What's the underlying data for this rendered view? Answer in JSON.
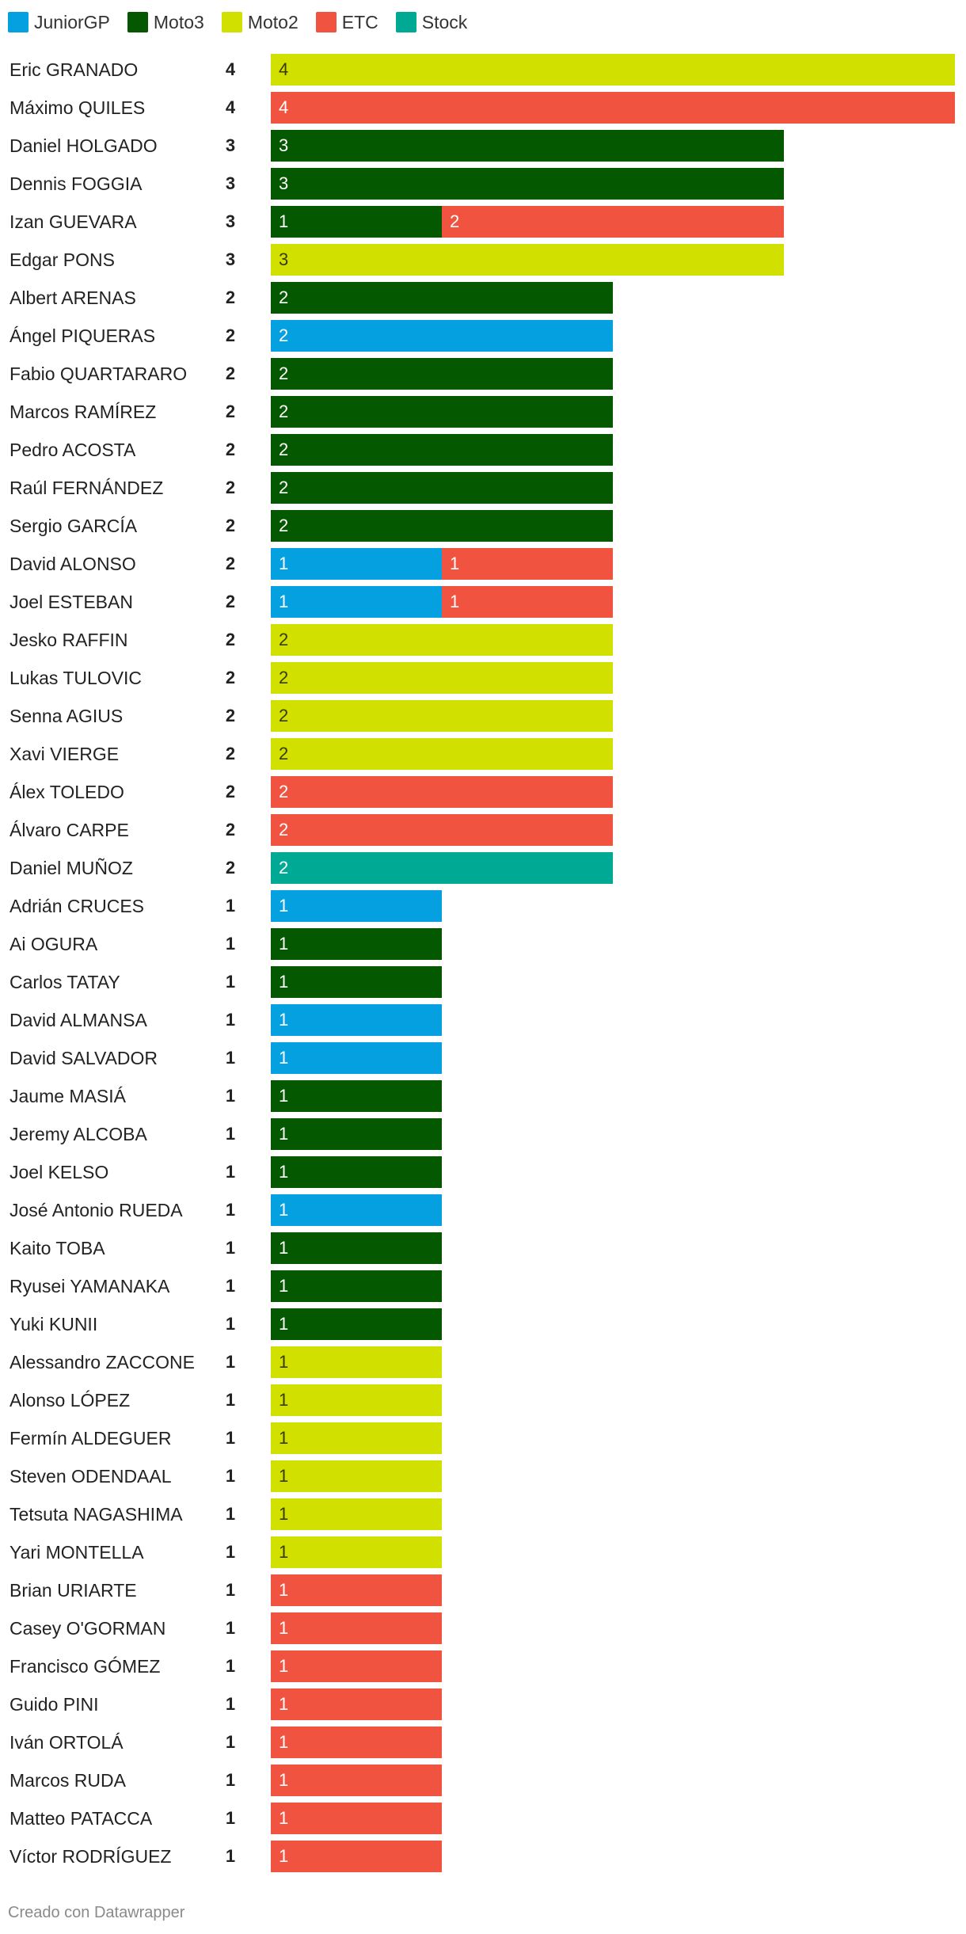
{
  "colors": {
    "JuniorGP": "#05a0df",
    "Moto3": "#035800",
    "Moto2": "#d2e000",
    "ETC": "#f05340",
    "Stock": "#00a994"
  },
  "chart_data": {
    "type": "bar",
    "orientation": "horizontal",
    "stacked": true,
    "xlim": [
      0,
      4
    ],
    "legend": [
      "JuniorGP",
      "Moto3",
      "Moto2",
      "ETC",
      "Stock"
    ],
    "legend_position": "top-left",
    "grid": false,
    "rows": [
      {
        "name": "Eric GRANADO",
        "total": "4",
        "segments": [
          {
            "series": "Moto2",
            "value": 4
          }
        ]
      },
      {
        "name": "Máximo QUILES",
        "total": "4",
        "segments": [
          {
            "series": "ETC",
            "value": 4
          }
        ]
      },
      {
        "name": "Daniel HOLGADO",
        "total": "3",
        "segments": [
          {
            "series": "Moto3",
            "value": 3
          }
        ]
      },
      {
        "name": "Dennis FOGGIA",
        "total": "3",
        "segments": [
          {
            "series": "Moto3",
            "value": 3
          }
        ]
      },
      {
        "name": "Izan GUEVARA",
        "total": "3",
        "segments": [
          {
            "series": "Moto3",
            "value": 1
          },
          {
            "series": "ETC",
            "value": 2
          }
        ]
      },
      {
        "name": "Edgar PONS",
        "total": "3",
        "segments": [
          {
            "series": "Moto2",
            "value": 3
          }
        ]
      },
      {
        "name": "Albert ARENAS",
        "total": "2",
        "segments": [
          {
            "series": "Moto3",
            "value": 2
          }
        ]
      },
      {
        "name": "Ángel PIQUERAS",
        "total": "2",
        "segments": [
          {
            "series": "JuniorGP",
            "value": 2
          }
        ]
      },
      {
        "name": "Fabio QUARTARARO",
        "total": "2",
        "segments": [
          {
            "series": "Moto3",
            "value": 2
          }
        ]
      },
      {
        "name": "Marcos RAMÍREZ",
        "total": "2",
        "segments": [
          {
            "series": "Moto3",
            "value": 2
          }
        ]
      },
      {
        "name": "Pedro ACOSTA",
        "total": "2",
        "segments": [
          {
            "series": "Moto3",
            "value": 2
          }
        ]
      },
      {
        "name": "Raúl FERNÁNDEZ",
        "total": "2",
        "segments": [
          {
            "series": "Moto3",
            "value": 2
          }
        ]
      },
      {
        "name": "Sergio GARCÍA",
        "total": "2",
        "segments": [
          {
            "series": "Moto3",
            "value": 2
          }
        ]
      },
      {
        "name": "David ALONSO",
        "total": "2",
        "segments": [
          {
            "series": "JuniorGP",
            "value": 1
          },
          {
            "series": "ETC",
            "value": 1
          }
        ]
      },
      {
        "name": "Joel ESTEBAN",
        "total": "2",
        "segments": [
          {
            "series": "JuniorGP",
            "value": 1
          },
          {
            "series": "ETC",
            "value": 1
          }
        ]
      },
      {
        "name": "Jesko RAFFIN",
        "total": "2",
        "segments": [
          {
            "series": "Moto2",
            "value": 2
          }
        ]
      },
      {
        "name": "Lukas TULOVIC",
        "total": "2",
        "segments": [
          {
            "series": "Moto2",
            "value": 2
          }
        ]
      },
      {
        "name": "Senna AGIUS",
        "total": "2",
        "segments": [
          {
            "series": "Moto2",
            "value": 2
          }
        ]
      },
      {
        "name": "Xavi VIERGE",
        "total": "2",
        "segments": [
          {
            "series": "Moto2",
            "value": 2
          }
        ]
      },
      {
        "name": "Álex TOLEDO",
        "total": "2",
        "segments": [
          {
            "series": "ETC",
            "value": 2
          }
        ]
      },
      {
        "name": "Álvaro CARPE",
        "total": "2",
        "segments": [
          {
            "series": "ETC",
            "value": 2
          }
        ]
      },
      {
        "name": "Daniel MUÑOZ",
        "total": "2",
        "segments": [
          {
            "series": "Stock",
            "value": 2
          }
        ]
      },
      {
        "name": "Adrián CRUCES",
        "total": "1",
        "segments": [
          {
            "series": "JuniorGP",
            "value": 1
          }
        ]
      },
      {
        "name": "Ai OGURA",
        "total": "1",
        "segments": [
          {
            "series": "Moto3",
            "value": 1
          }
        ]
      },
      {
        "name": "Carlos TATAY",
        "total": "1",
        "segments": [
          {
            "series": "Moto3",
            "value": 1
          }
        ]
      },
      {
        "name": "David ALMANSA",
        "total": "1",
        "segments": [
          {
            "series": "JuniorGP",
            "value": 1
          }
        ]
      },
      {
        "name": "David SALVADOR",
        "total": "1",
        "segments": [
          {
            "series": "JuniorGP",
            "value": 1
          }
        ]
      },
      {
        "name": "Jaume MASIÁ",
        "total": "1",
        "segments": [
          {
            "series": "Moto3",
            "value": 1
          }
        ]
      },
      {
        "name": "Jeremy ALCOBA",
        "total": "1",
        "segments": [
          {
            "series": "Moto3",
            "value": 1
          }
        ]
      },
      {
        "name": "Joel KELSO",
        "total": "1",
        "segments": [
          {
            "series": "Moto3",
            "value": 1
          }
        ]
      },
      {
        "name": "José Antonio RUEDA",
        "total": "1",
        "segments": [
          {
            "series": "JuniorGP",
            "value": 1
          }
        ]
      },
      {
        "name": "Kaito TOBA",
        "total": "1",
        "segments": [
          {
            "series": "Moto3",
            "value": 1
          }
        ]
      },
      {
        "name": "Ryusei YAMANAKA",
        "total": "1",
        "segments": [
          {
            "series": "Moto3",
            "value": 1
          }
        ]
      },
      {
        "name": "Yuki KUNII",
        "total": "1",
        "segments": [
          {
            "series": "Moto3",
            "value": 1
          }
        ]
      },
      {
        "name": "Alessandro ZACCONE",
        "total": "1",
        "segments": [
          {
            "series": "Moto2",
            "value": 1
          }
        ]
      },
      {
        "name": "Alonso LÓPEZ",
        "total": "1",
        "segments": [
          {
            "series": "Moto2",
            "value": 1
          }
        ]
      },
      {
        "name": "Fermín ALDEGUER",
        "total": "1",
        "segments": [
          {
            "series": "Moto2",
            "value": 1
          }
        ]
      },
      {
        "name": "Steven ODENDAAL",
        "total": "1",
        "segments": [
          {
            "series": "Moto2",
            "value": 1
          }
        ]
      },
      {
        "name": "Tetsuta NAGASHIMA",
        "total": "1",
        "segments": [
          {
            "series": "Moto2",
            "value": 1
          }
        ]
      },
      {
        "name": "Yari MONTELLA",
        "total": "1",
        "segments": [
          {
            "series": "Moto2",
            "value": 1
          }
        ]
      },
      {
        "name": "Brian URIARTE",
        "total": "1",
        "segments": [
          {
            "series": "ETC",
            "value": 1
          }
        ]
      },
      {
        "name": "Casey O'GORMAN",
        "total": "1",
        "segments": [
          {
            "series": "ETC",
            "value": 1
          }
        ]
      },
      {
        "name": "Francisco GÓMEZ",
        "total": "1",
        "segments": [
          {
            "series": "ETC",
            "value": 1
          }
        ]
      },
      {
        "name": "Guido PINI",
        "total": "1",
        "segments": [
          {
            "series": "ETC",
            "value": 1
          }
        ]
      },
      {
        "name": "Iván ORTOLÁ",
        "total": "1",
        "segments": [
          {
            "series": "ETC",
            "value": 1
          }
        ]
      },
      {
        "name": "Marcos RUDA",
        "total": "1",
        "segments": [
          {
            "series": "ETC",
            "value": 1
          }
        ]
      },
      {
        "name": "Matteo PATACCA",
        "total": "1",
        "segments": [
          {
            "series": "ETC",
            "value": 1
          }
        ]
      },
      {
        "name": "Víctor RODRÍGUEZ",
        "total": "1",
        "segments": [
          {
            "series": "ETC",
            "value": 1
          }
        ]
      }
    ]
  },
  "footer": {
    "credit": "Creado con Datawrapper"
  }
}
